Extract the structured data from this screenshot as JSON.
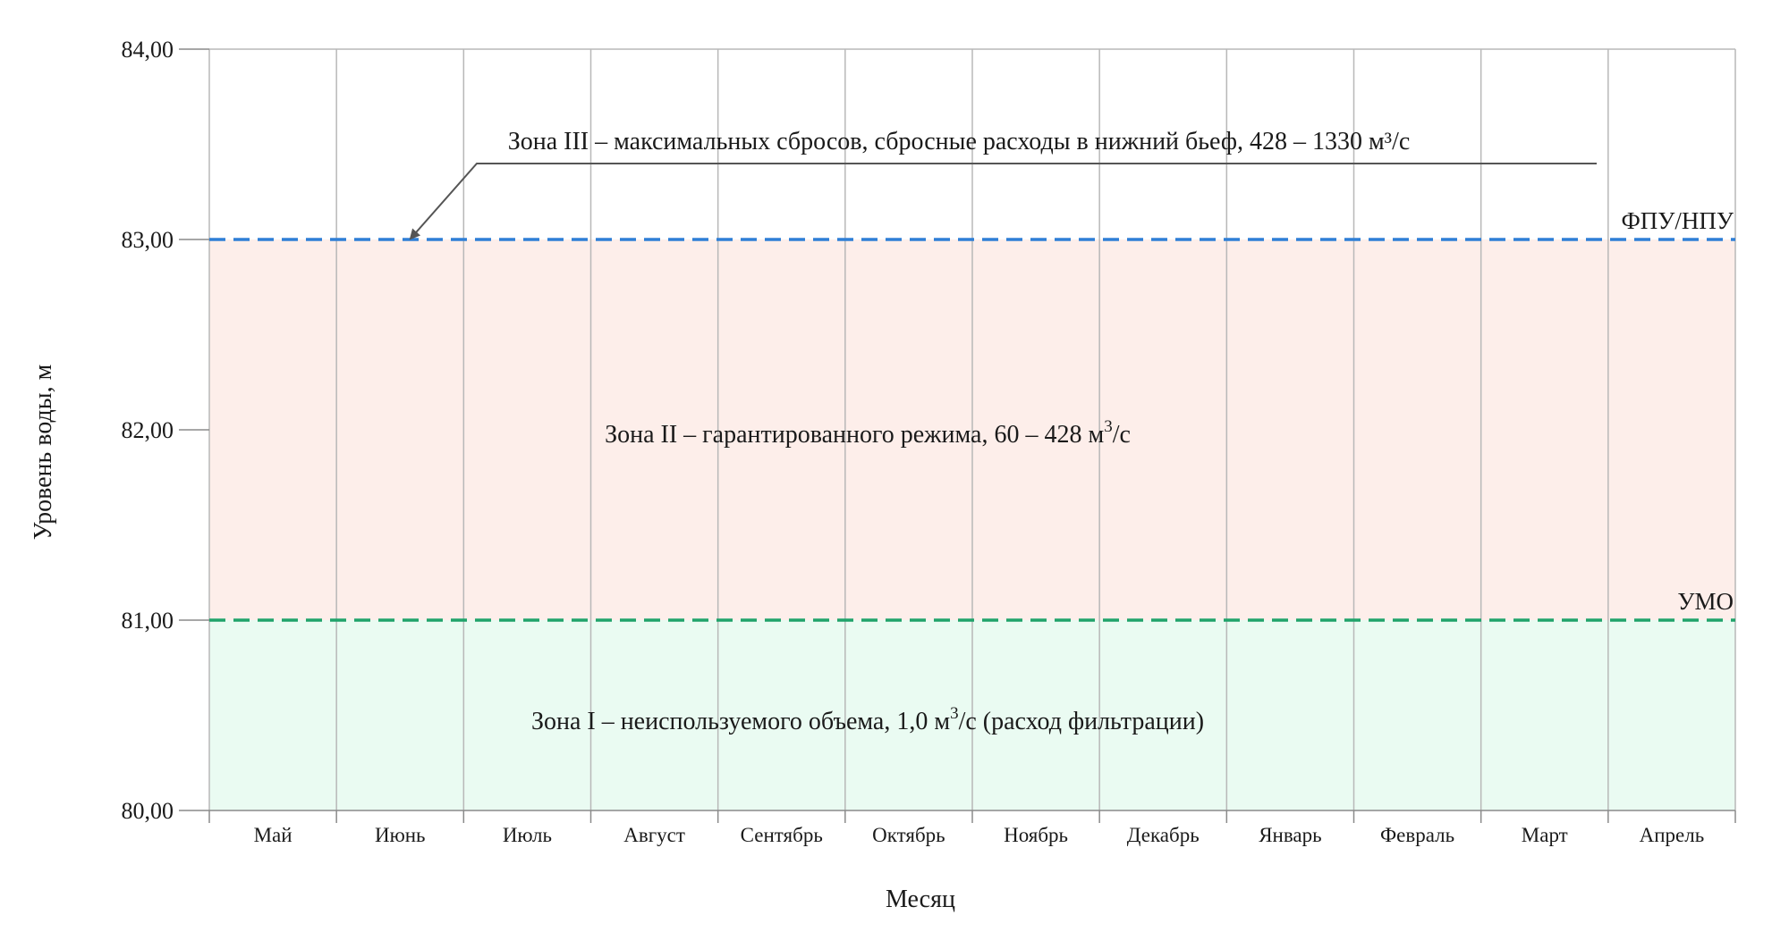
{
  "chart_data": {
    "type": "area",
    "xlabel": "Месяц",
    "ylabel": "Уровень воды, м",
    "categories": [
      "Май",
      "Июнь",
      "Июль",
      "Август",
      "Сентябрь",
      "Октябрь",
      "Ноябрь",
      "Декабрь",
      "Январь",
      "Февраль",
      "Март",
      "Апрель"
    ],
    "ylim": [
      80,
      84
    ],
    "yticks": [
      80,
      81,
      82,
      83,
      84
    ],
    "ytick_labels": [
      "80,00",
      "81,00",
      "82,00",
      "83,00",
      "84,00"
    ],
    "grid": "vertical",
    "reference_lines": [
      {
        "name": "ФПУ/НПУ",
        "value": 83.0,
        "color": "#2f7fd6",
        "style": "dashed"
      },
      {
        "name": "УМО",
        "value": 81.0,
        "color": "#1fa36a",
        "style": "dashed"
      }
    ],
    "zones": [
      {
        "label": "Зона I – неиспользуемого объема, 1,0 м",
        "sup": "3",
        "label_tail": "/с (расход фильтрации)",
        "ymin": 80.0,
        "ymax": 81.0,
        "color": "#eafbf2"
      },
      {
        "label": "Зона II – гарантированного режима, 60 – 428 м",
        "sup": "3",
        "label_tail": "/с",
        "ymin": 81.0,
        "ymax": 83.0,
        "color": "#fdeeea"
      },
      {
        "label": "Зона III – максимальных сбросов, сбросные расходы в нижний бьеф, 428 – 1330 м³/с",
        "sup": "",
        "label_tail": "",
        "ymin": 83.0,
        "ymax": 84.0,
        "color": "#ffffff"
      }
    ]
  }
}
